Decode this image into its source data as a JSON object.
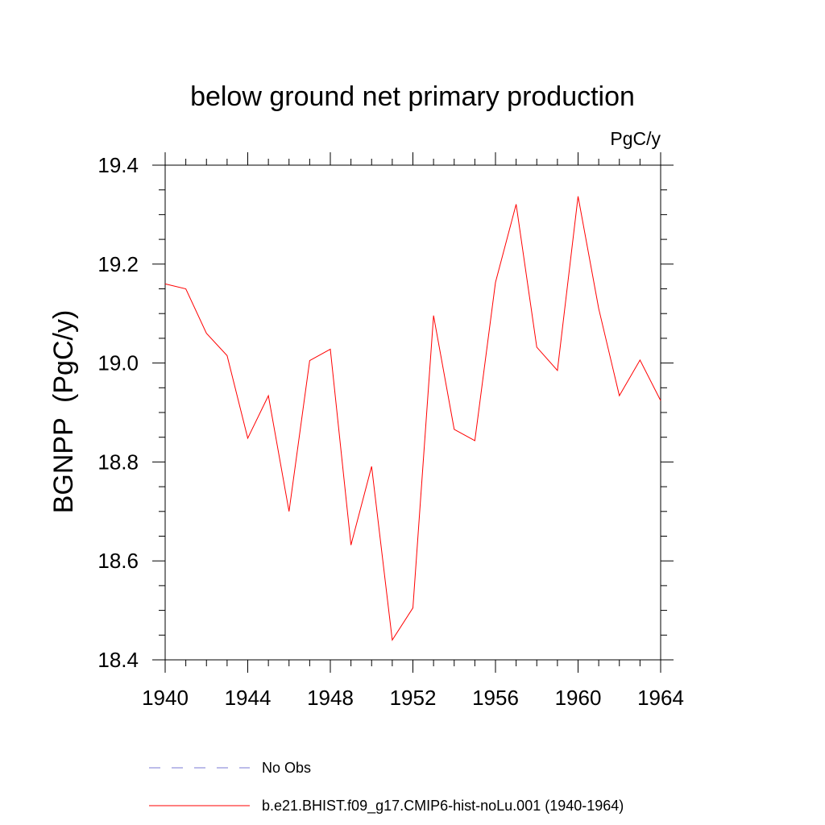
{
  "chart_data": {
    "type": "line",
    "title": "below ground net primary production",
    "units": "PgC/y",
    "ylabel": "BGNPP  (PgC/y)",
    "xlabel": "",
    "xlim": [
      1940,
      1964
    ],
    "ylim": [
      18.4,
      19.4
    ],
    "x_ticks": [
      1940,
      1944,
      1948,
      1952,
      1956,
      1960,
      1964
    ],
    "x_tick_labels": [
      "1940",
      "1944",
      "1948",
      "1952",
      "1956",
      "1960",
      "1964"
    ],
    "y_ticks": [
      18.4,
      18.6,
      18.8,
      19.0,
      19.2,
      19.4
    ],
    "y_tick_labels": [
      "18.4",
      "18.6",
      "18.8",
      "19.0",
      "19.2",
      "19.4"
    ],
    "grid": false,
    "legend_position": "bottom",
    "legend": [
      {
        "label": "No Obs",
        "color": "#7a7ad6",
        "style": "dashed"
      },
      {
        "label": "b.e21.BHIST.f09_g17.CMIP6-hist-noLu.001 (1940-1964)",
        "color": "#ff0000",
        "style": "solid"
      }
    ],
    "series": [
      {
        "name": "b.e21.BHIST.f09_g17.CMIP6-hist-noLu.001 (1940-1964)",
        "color": "#ff0000",
        "x": [
          1940,
          1941,
          1942,
          1943,
          1944,
          1945,
          1946,
          1947,
          1948,
          1949,
          1950,
          1951,
          1952,
          1953,
          1954,
          1955,
          1956,
          1957,
          1958,
          1959,
          1960,
          1961,
          1962,
          1963,
          1964
        ],
        "y": [
          19.16,
          19.15,
          19.06,
          19.015,
          18.848,
          18.934,
          18.7,
          19.005,
          19.028,
          18.632,
          18.791,
          18.44,
          18.505,
          19.096,
          18.866,
          18.843,
          19.163,
          19.321,
          19.032,
          18.985,
          19.337,
          19.11,
          18.934,
          19.006,
          18.924
        ]
      }
    ]
  }
}
